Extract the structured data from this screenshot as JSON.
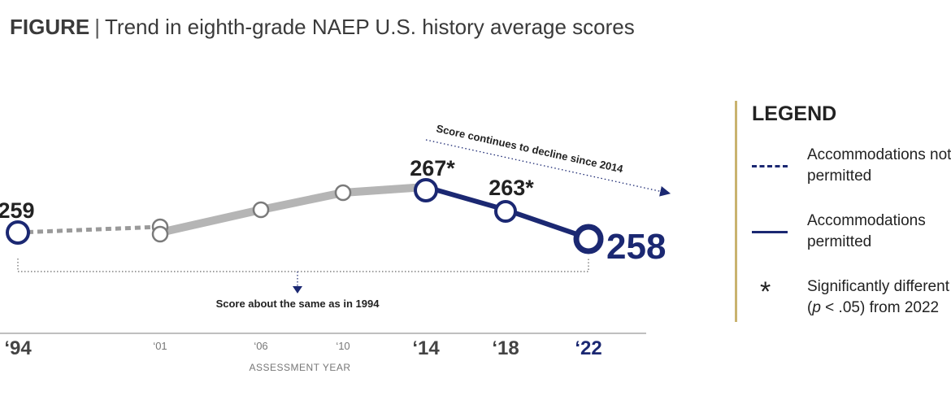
{
  "figure": {
    "prefix": "FIGURE",
    "separator": "|",
    "title": "Trend in eighth-grade NAEP U.S. history average scores"
  },
  "chart_data": {
    "type": "line",
    "xlabel": "ASSESSMENT YEAR",
    "ylabel": "",
    "x_ticks": [
      "‘94",
      "‘01",
      "‘06",
      "‘10",
      "‘14",
      "‘18",
      "‘22"
    ],
    "series": [
      {
        "name": "Accommodations not permitted",
        "style": "dashed",
        "color": "#9a9a9a",
        "points": [
          {
            "x": 1994,
            "y": 259,
            "label": "259"
          },
          {
            "x": 2001,
            "y": 260
          }
        ]
      },
      {
        "name": "Accommodations permitted",
        "style": "solid",
        "color": "#b5b5b5",
        "points": [
          {
            "x": 2001,
            "y": 259
          },
          {
            "x": 2006,
            "y": 263
          },
          {
            "x": 2010,
            "y": 266
          },
          {
            "x": 2014,
            "y": 267
          }
        ]
      },
      {
        "name": "Accommodations permitted",
        "style": "solid",
        "color": "#1b2872",
        "points": [
          {
            "x": 2014,
            "y": 267,
            "label": "267*"
          },
          {
            "x": 2018,
            "y": 263,
            "label": "263*"
          },
          {
            "x": 2022,
            "y": 258,
            "label": "258"
          }
        ]
      }
    ],
    "annotations": [
      "Score continues to decline since 2014",
      "Score about the same as in 1994"
    ],
    "colors": {
      "accent": "#1b2872",
      "gray": "#b5b5b5",
      "gold": "#c9b36f"
    }
  },
  "legend": {
    "title": "LEGEND",
    "items": [
      {
        "style": "dashed",
        "line1": "Accommodations not",
        "line2": "permitted"
      },
      {
        "style": "solid",
        "line1": "Accommodations",
        "line2": "permitted"
      },
      {
        "symbol": "*",
        "line1": "Significantly different",
        "line2_prefix": "(",
        "line2_italic": "p",
        "line2_suffix": " < .05) from 2022"
      }
    ]
  }
}
